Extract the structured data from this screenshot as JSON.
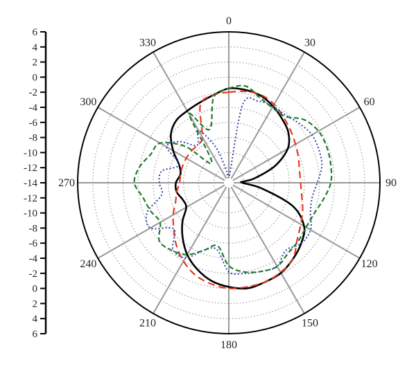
{
  "chart_data": {
    "type": "polar-line",
    "angle_ticks": [
      "0",
      "30",
      "60",
      "90",
      "120",
      "150",
      "180",
      "210",
      "240",
      "270",
      "300",
      "330"
    ],
    "radial_ticks": [
      "6",
      "4",
      "2",
      "0",
      "-2",
      "-4",
      "-6",
      "-8",
      "-10",
      "-12",
      "-14",
      "-12",
      "-10",
      "-8",
      "-6",
      "-4",
      "-2",
      "0",
      "2",
      "4",
      "6"
    ],
    "r_range": [
      -14,
      6
    ],
    "angle_direction": "clockwise",
    "zero_location": "top",
    "grid": true,
    "colors": {
      "solid": "#000000",
      "dashed": "#e8381f",
      "dotted": "#2d3fa8",
      "dashdot": "#1f7a2e",
      "grid": "#9a9a9a",
      "spokes": "#999999"
    },
    "series": [
      {
        "style": "solid",
        "color": "#000000",
        "theta": [
          0,
          10,
          20,
          30,
          40,
          50,
          60,
          70,
          80,
          85,
          90,
          100,
          110,
          120,
          130,
          140,
          150,
          160,
          170,
          180,
          190,
          200,
          210,
          220,
          230,
          240,
          250,
          260,
          270,
          280,
          290,
          300,
          310,
          320,
          330,
          340,
          350
        ],
        "r": [
          -1.5,
          -1.5,
          -1.7,
          -2.3,
          -3.0,
          -3.7,
          -5.0,
          -7.5,
          -10.5,
          -12.0,
          -12.2,
          -9.5,
          -5.0,
          -2.5,
          -1.5,
          -0.8,
          -0.2,
          0.0,
          0.2,
          -0.2,
          -0.8,
          -1.8,
          -3.0,
          -4.5,
          -6.0,
          -7.5,
          -7.5,
          -7.0,
          -7.0,
          -7.5,
          -7.0,
          -5.5,
          -4.0,
          -3.2,
          -3.0,
          -2.7,
          -2.2
        ]
      },
      {
        "style": "dashed",
        "color": "#e8381f",
        "theta": [
          0,
          10,
          20,
          30,
          40,
          50,
          60,
          70,
          80,
          90,
          100,
          110,
          120,
          130,
          140,
          150,
          160,
          170,
          180,
          190,
          200,
          210,
          220,
          230,
          240,
          250,
          260,
          270,
          280,
          290,
          300,
          310,
          320,
          330,
          340,
          350
        ],
        "r": [
          -2.0,
          -1.7,
          -1.6,
          -2.0,
          -2.7,
          -3.3,
          -3.8,
          -4.2,
          -4.5,
          -4.5,
          -4.2,
          -3.6,
          -3.0,
          -2.2,
          -0.8,
          -0.3,
          0.0,
          0.0,
          0.0,
          -0.4,
          -1.0,
          -2.0,
          -3.2,
          -4.5,
          -5.5,
          -6.5,
          -7.0,
          -7.5,
          -7.5,
          -7.5,
          -7.5,
          -7.5,
          -7.5,
          -7.0,
          -3.0,
          -2.2
        ]
      },
      {
        "style": "dotted",
        "color": "#2d3fa8",
        "theta": [
          0,
          10,
          20,
          30,
          40,
          50,
          60,
          70,
          80,
          90,
          100,
          110,
          120,
          130,
          140,
          150,
          160,
          170,
          180,
          190,
          200,
          210,
          220,
          230,
          240,
          250,
          260,
          270,
          280,
          290,
          300,
          310,
          320,
          330,
          340,
          350
        ],
        "r": [
          -13.5,
          -3.5,
          -2.5,
          -2.3,
          -2.3,
          -1.8,
          -1.3,
          -1.3,
          -1.5,
          -2.3,
          -2.8,
          -2.5,
          -1.5,
          -1.5,
          -2.3,
          -1.2,
          -1.5,
          -1.8,
          -2.2,
          -5.0,
          -4.5,
          -2.5,
          -2.5,
          -4.5,
          -2.0,
          -2.5,
          -5.0,
          -4.8,
          -5.0,
          -7.0,
          -4.5,
          -5.5,
          -7.5,
          -6.0,
          -9.0,
          -12.5
        ]
      },
      {
        "style": "dashdot",
        "color": "#1f7a2e",
        "theta": [
          0,
          10,
          20,
          30,
          40,
          50,
          60,
          70,
          80,
          90,
          100,
          110,
          120,
          130,
          140,
          150,
          160,
          170,
          180,
          190,
          200,
          210,
          220,
          230,
          240,
          250,
          260,
          270,
          280,
          290,
          300,
          310,
          320,
          330,
          340,
          350
        ],
        "r": [
          -1.5,
          -1.0,
          -2.0,
          -2.5,
          -2.5,
          -1.0,
          -0.3,
          -0.2,
          -0.3,
          -0.5,
          -1.3,
          -2.0,
          -2.2,
          -2.0,
          -1.8,
          -1.2,
          -1.5,
          -2.0,
          -3.0,
          -5.5,
          -4.5,
          -3.0,
          -2.3,
          -2.0,
          -3.5,
          -3.0,
          -2.5,
          -1.5,
          -2.0,
          -3.0,
          -3.5,
          -6.5,
          -10.5,
          -3.5,
          -6.5,
          -2.5
        ]
      }
    ]
  }
}
